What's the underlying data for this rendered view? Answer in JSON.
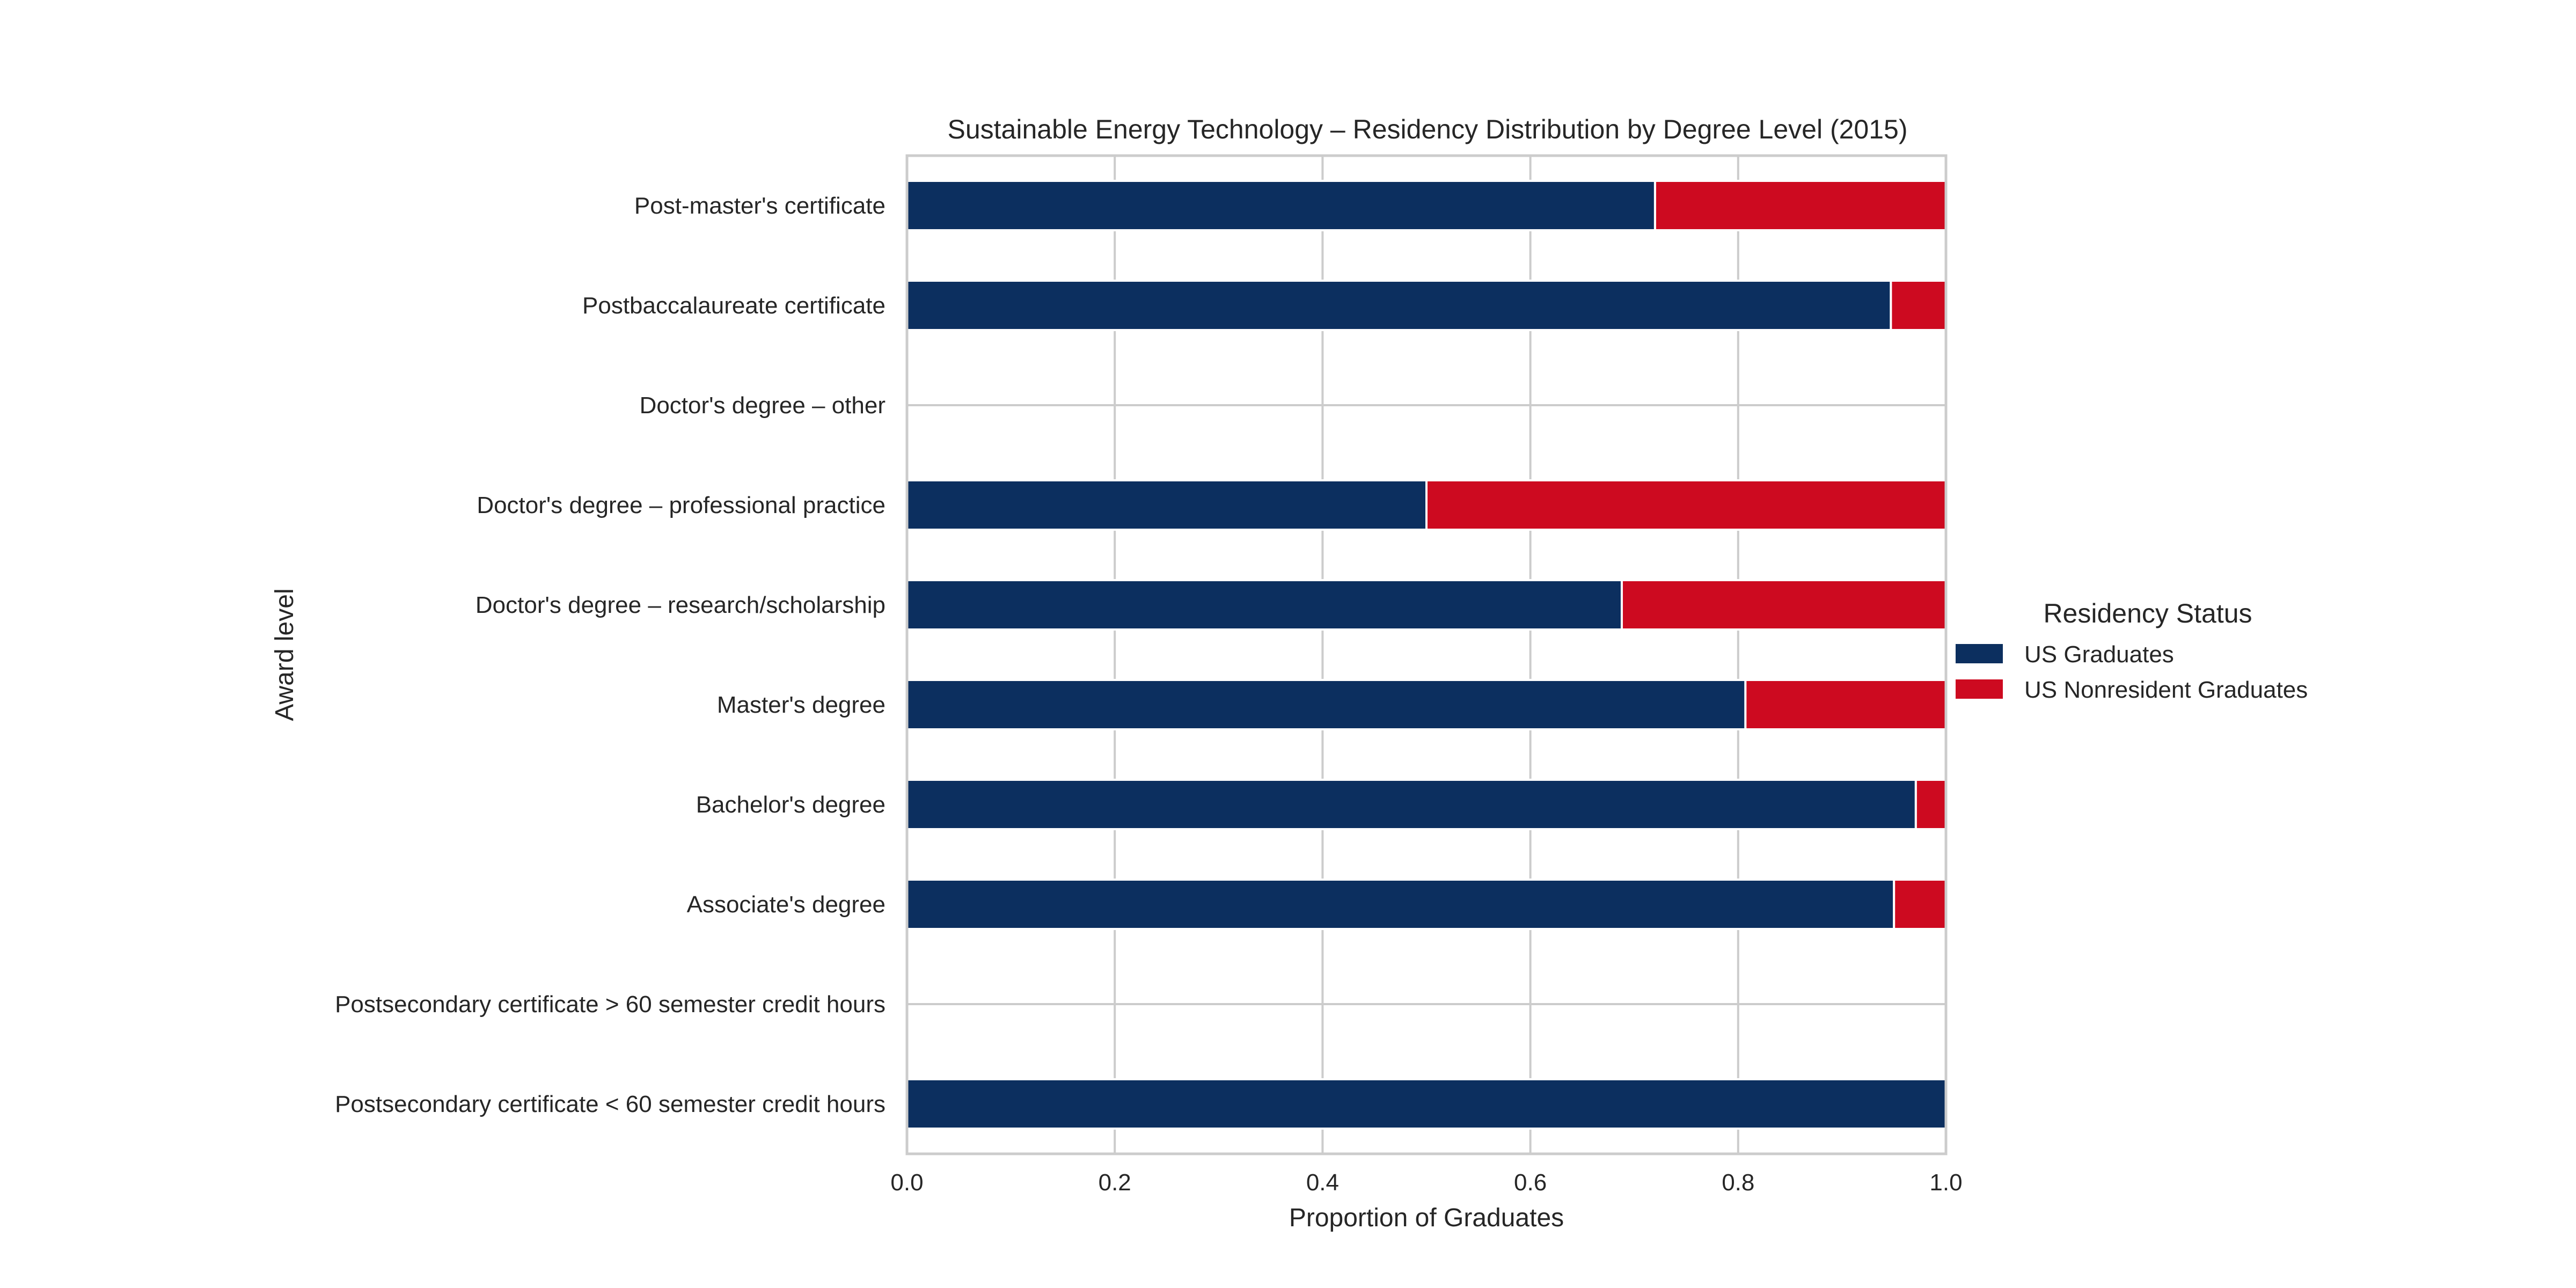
{
  "chart_data": {
    "type": "bar",
    "orientation": "horizontal",
    "stacked": true,
    "title": "Sustainable Energy Technology – Residency Distribution by Degree Level (2015)",
    "xlabel": "Proportion of Graduates",
    "ylabel": "Award level",
    "xlim": [
      0.0,
      1.0
    ],
    "xticks": [
      "0.0",
      "0.2",
      "0.4",
      "0.6",
      "0.8",
      "1.0"
    ],
    "grid": true,
    "legend": {
      "title": "Residency Status",
      "placement": "center-right outside"
    },
    "categories": [
      "Post-master's certificate",
      "Postbaccalaureate certificate",
      "Doctor's degree – other",
      "Doctor's degree – professional practice",
      "Doctor's degree – research/scholarship",
      "Master's degree",
      "Bachelor's degree",
      "Associate's degree",
      "Postsecondary certificate > 60 semester credit hours",
      "Postsecondary certificate < 60 semester credit hours"
    ],
    "series": [
      {
        "name": "US Graduates",
        "color": "#0c2f5f",
        "values": [
          0.72,
          0.947,
          0.0,
          0.5,
          0.688,
          0.807,
          0.971,
          0.95,
          0.0,
          1.0
        ]
      },
      {
        "name": "US Nonresident Graduates",
        "color": "#cd0a20",
        "values": [
          0.28,
          0.053,
          0.0,
          0.5,
          0.312,
          0.193,
          0.029,
          0.05,
          0.0,
          0.0
        ]
      }
    ]
  }
}
